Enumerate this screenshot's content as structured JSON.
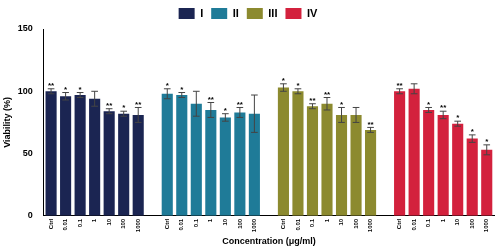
{
  "chart_data": {
    "type": "bar",
    "x_label": "Concentration (μg/ml)",
    "y_label": "Viability (%)",
    "categories": [
      "Ctrl",
      "0.01",
      "0.1",
      "1",
      "10",
      "100",
      "1000",
      null,
      "Ctrl",
      "0.01",
      "0.1",
      "1",
      "10",
      "100",
      "1000",
      null,
      "Ctrl",
      "0.01",
      "0.1",
      "1",
      "10",
      "100",
      "1000",
      null,
      "Ctrl",
      "0.01",
      "0.1",
      "1",
      "10",
      "100",
      "1000"
    ],
    "series": [
      {
        "name": "I",
        "color": "#1b2552",
        "values": [
          100,
          96,
          97,
          94,
          84,
          82,
          81,
          null,
          null,
          null,
          null,
          null,
          null,
          null,
          null,
          null,
          null,
          null,
          null,
          null,
          null,
          null,
          null,
          null,
          null,
          null,
          null,
          null,
          null,
          null,
          null
        ],
        "errors": [
          2,
          3,
          2,
          6,
          2,
          2,
          6,
          null,
          null,
          null,
          null,
          null,
          null,
          null,
          null,
          null,
          null,
          null,
          null,
          null,
          null,
          null,
          null,
          null,
          null,
          null,
          null,
          null,
          null,
          null,
          null
        ],
        "significance": [
          "**",
          "*",
          "*",
          null,
          "**",
          "*",
          "**",
          null,
          null,
          null,
          null,
          null,
          null,
          null,
          null,
          null,
          null,
          null,
          null,
          null,
          null,
          null,
          null,
          null,
          null,
          null,
          null,
          null,
          null,
          null,
          null
        ]
      },
      {
        "name": "II",
        "color": "#1f7b98",
        "values": [
          null,
          null,
          null,
          null,
          null,
          null,
          null,
          null,
          98,
          97,
          90,
          85,
          79,
          83,
          82,
          null,
          null,
          null,
          null,
          null,
          null,
          null,
          null,
          null,
          null,
          null,
          null,
          null,
          null,
          null,
          null
        ],
        "errors": [
          null,
          null,
          null,
          null,
          null,
          null,
          null,
          null,
          4,
          2,
          10,
          6,
          3,
          4,
          15,
          null,
          null,
          null,
          null,
          null,
          null,
          null,
          null,
          null,
          null,
          null,
          null,
          null,
          null,
          null,
          null
        ],
        "significance": [
          null,
          null,
          null,
          null,
          null,
          null,
          null,
          null,
          "*",
          "*",
          null,
          "**",
          "*",
          "**",
          null,
          null,
          null,
          null,
          null,
          null,
          null,
          null,
          null,
          null,
          null,
          null,
          null,
          null,
          null,
          null,
          null
        ]
      },
      {
        "name": "III",
        "color": "#8c8a2f",
        "values": [
          null,
          null,
          null,
          null,
          null,
          null,
          null,
          null,
          null,
          null,
          null,
          null,
          null,
          null,
          null,
          null,
          103,
          100,
          88,
          90,
          81,
          81,
          69,
          null,
          null,
          null,
          null,
          null,
          null,
          null,
          null
        ],
        "errors": [
          null,
          null,
          null,
          null,
          null,
          null,
          null,
          null,
          null,
          null,
          null,
          null,
          null,
          null,
          null,
          null,
          3,
          2,
          2,
          5,
          6,
          6,
          2,
          null,
          null,
          null,
          null,
          null,
          null,
          null,
          null
        ],
        "significance": [
          null,
          null,
          null,
          null,
          null,
          null,
          null,
          null,
          null,
          null,
          null,
          null,
          null,
          null,
          null,
          null,
          "*",
          "*",
          "**",
          "**",
          "*",
          null,
          "**",
          null,
          null,
          null,
          null,
          null,
          null,
          null,
          null
        ]
      },
      {
        "name": "IV",
        "color": "#d3213d",
        "values": [
          null,
          null,
          null,
          null,
          null,
          null,
          null,
          null,
          null,
          null,
          null,
          null,
          null,
          null,
          null,
          null,
          null,
          null,
          null,
          null,
          null,
          null,
          null,
          null,
          100,
          102,
          85,
          81,
          74,
          62,
          53
        ],
        "errors": [
          null,
          null,
          null,
          null,
          null,
          null,
          null,
          null,
          null,
          null,
          null,
          null,
          null,
          null,
          null,
          null,
          null,
          null,
          null,
          null,
          null,
          null,
          null,
          null,
          2,
          4,
          2,
          3,
          2,
          3,
          4
        ],
        "significance": [
          null,
          null,
          null,
          null,
          null,
          null,
          null,
          null,
          null,
          null,
          null,
          null,
          null,
          null,
          null,
          null,
          null,
          null,
          null,
          null,
          null,
          null,
          null,
          null,
          "**",
          null,
          "*",
          "**",
          "*",
          "*",
          "*"
        ]
      }
    ],
    "ylim": [
      0,
      150
    ],
    "yticks": [
      0,
      50,
      100,
      150
    ],
    "legend": "top",
    "grid": false
  }
}
